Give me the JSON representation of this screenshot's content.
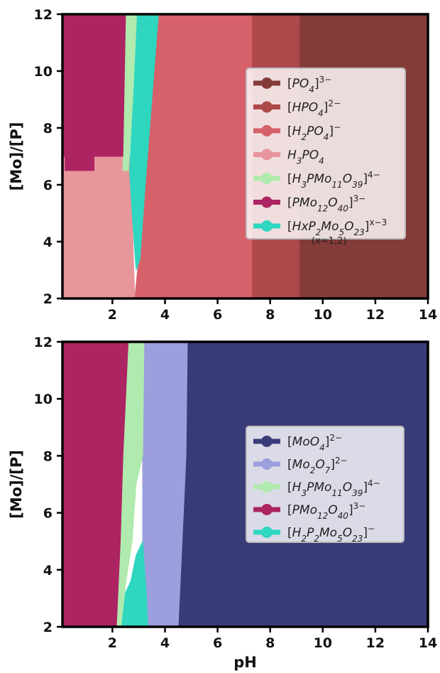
{
  "chart_data": [
    {
      "type": "heatmap",
      "subtype": "speciation-phase-diagram",
      "xlabel": "",
      "ylabel": "[Mo]/[P]",
      "xlim": [
        0.1,
        14
      ],
      "ylim": [
        2,
        12
      ],
      "xticks": [
        2,
        4,
        6,
        8,
        10,
        12,
        14
      ],
      "yticks": [
        2,
        4,
        6,
        8,
        10,
        12
      ],
      "legend_position": "center-right",
      "series": [
        {
          "name": "[PO4]3-",
          "color": "#843C39",
          "region": [
            [
              9.1,
              2
            ],
            [
              14,
              2
            ],
            [
              14,
              12
            ],
            [
              9.1,
              12
            ]
          ]
        },
        {
          "name": "[HPO4]2-",
          "color": "#AD494A",
          "region": [
            [
              7.3,
              2
            ],
            [
              9.1,
              2
            ],
            [
              9.1,
              12
            ],
            [
              7.3,
              12
            ]
          ]
        },
        {
          "name": "[H2PO4]-",
          "color": "#D6616B",
          "region": [
            [
              2.85,
              2
            ],
            [
              7.3,
              2
            ],
            [
              7.3,
              12
            ],
            [
              3.75,
              12
            ],
            [
              3.5,
              9
            ],
            [
              3.25,
              6
            ],
            [
              3.0,
              3.4
            ],
            [
              2.85,
              2
            ]
          ]
        },
        {
          "name": "H3PO4",
          "color": "#E7969C",
          "region": [
            [
              0.1,
              2
            ],
            [
              2.85,
              2
            ],
            [
              2.75,
              5
            ],
            [
              2.65,
              7
            ],
            [
              1.3,
              7
            ],
            [
              1.3,
              6.5
            ],
            [
              0.2,
              6.5
            ],
            [
              0.2,
              7
            ],
            [
              0.1,
              7
            ]
          ]
        },
        {
          "name": "[H3PMo11O39]4-",
          "color": "#B0EAAE",
          "region": [
            [
              2.4,
              6.5
            ],
            [
              2.6,
              6.5
            ],
            [
              2.8,
              9
            ],
            [
              2.95,
              12
            ],
            [
              2.5,
              12
            ],
            [
              2.45,
              9
            ]
          ]
        },
        {
          "name": "[PMo12O40]3-",
          "color": "#AD2462",
          "region": [
            [
              0.1,
              7
            ],
            [
              0.2,
              7
            ],
            [
              0.2,
              6.5
            ],
            [
              1.3,
              6.5
            ],
            [
              1.3,
              7
            ],
            [
              2.4,
              7
            ],
            [
              2.5,
              12
            ],
            [
              0.1,
              12
            ]
          ]
        },
        {
          "name": "[HxP2Mo5O23]x-3",
          "color": "#2FD6C0",
          "region": [
            [
              2.9,
              3
            ],
            [
              3.05,
              3.4
            ],
            [
              3.25,
              6
            ],
            [
              3.5,
              9
            ],
            [
              3.75,
              12
            ],
            [
              2.95,
              12
            ],
            [
              2.8,
              9
            ],
            [
              2.65,
              6.5
            ],
            [
              2.75,
              5
            ]
          ]
        }
      ],
      "legend_note": "(x=1,2)"
    },
    {
      "type": "heatmap",
      "subtype": "speciation-phase-diagram",
      "xlabel": "pH",
      "ylabel": "[Mo]/[P]",
      "xlim": [
        0.1,
        14
      ],
      "ylim": [
        2,
        12
      ],
      "xticks": [
        2,
        4,
        6,
        8,
        10,
        12,
        14
      ],
      "yticks": [
        2,
        4,
        6,
        8,
        10,
        12
      ],
      "legend_position": "center-right",
      "series": [
        {
          "name": "[MoO4]2-",
          "color": "#393B79",
          "region": [
            [
              4.5,
              2
            ],
            [
              14,
              2
            ],
            [
              14,
              12
            ],
            [
              4.85,
              12
            ],
            [
              4.8,
              8
            ],
            [
              4.65,
              5
            ]
          ]
        },
        {
          "name": "[Mo2O7]2-",
          "color": "#9C9EDE",
          "region": [
            [
              3.35,
              2
            ],
            [
              4.5,
              2
            ],
            [
              4.65,
              5
            ],
            [
              4.8,
              8
            ],
            [
              4.85,
              12
            ],
            [
              3.2,
              12
            ],
            [
              3.15,
              8
            ],
            [
              3.15,
              5
            ],
            [
              3.3,
              3
            ]
          ]
        },
        {
          "name": "[H3PMo11O39]4-",
          "color": "#B0EAAE",
          "region": [
            [
              2.15,
              2
            ],
            [
              2.35,
              2
            ],
            [
              2.5,
              3.5
            ],
            [
              2.75,
              5
            ],
            [
              2.9,
              7
            ],
            [
              3.15,
              8
            ],
            [
              3.2,
              12
            ],
            [
              2.6,
              12
            ],
            [
              2.4,
              8
            ],
            [
              2.3,
              5
            ]
          ]
        },
        {
          "name": "[PMo12O40]3-",
          "color": "#AD2462",
          "region": [
            [
              0.1,
              2
            ],
            [
              2.15,
              2
            ],
            [
              2.3,
              5
            ],
            [
              2.4,
              8
            ],
            [
              2.6,
              12
            ],
            [
              0.1,
              12
            ]
          ]
        },
        {
          "name": "[H2P2Mo5O23]-",
          "color": "#2FD6C0",
          "region": [
            [
              2.35,
              2
            ],
            [
              3.35,
              2
            ],
            [
              3.3,
              3
            ],
            [
              3.15,
              5
            ],
            [
              2.9,
              4.5
            ],
            [
              2.7,
              3.6
            ],
            [
              2.5,
              3.2
            ]
          ]
        }
      ]
    }
  ]
}
